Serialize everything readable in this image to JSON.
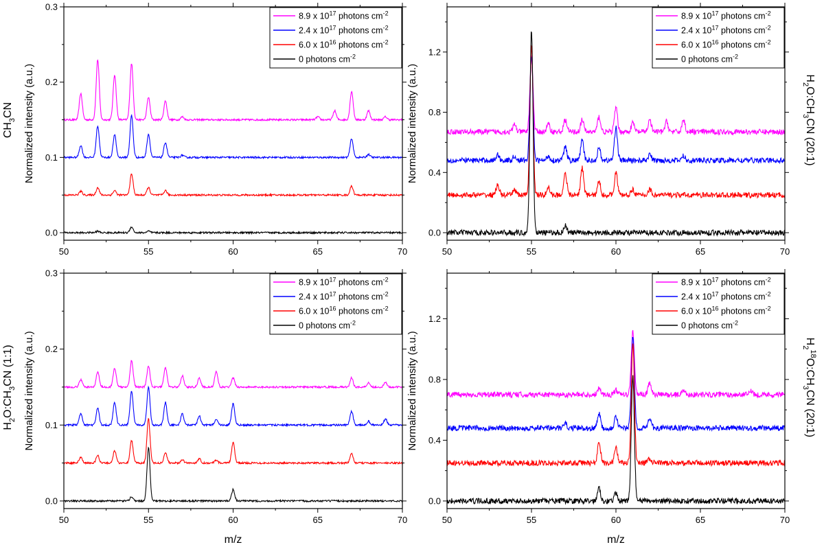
{
  "colors": {
    "magenta": "#ff00ff",
    "blue": "#0000ff",
    "red": "#ff0000",
    "black": "#000000"
  },
  "legend_entries": [
    {
      "color": "magenta",
      "prefix": "8.9 x 10",
      "exp": "17",
      "suffix": " photons cm",
      "unit_exp": "-2"
    },
    {
      "color": "blue",
      "prefix": "2.4 x 10",
      "exp": "17",
      "suffix": " photons cm",
      "unit_exp": "-2"
    },
    {
      "color": "red",
      "prefix": "6.0 x 10",
      "exp": "16",
      "suffix": " photons cm",
      "unit_exp": "-2"
    },
    {
      "color": "black",
      "prefix": "0 photons cm",
      "exp": "-2",
      "suffix": "",
      "unit_exp": ""
    }
  ],
  "shared_xlabel": "m/z",
  "chart_data": [
    {
      "type": "line",
      "panel": "top-left",
      "label_side": "left",
      "sample_label": [
        {
          "t": "CH"
        },
        {
          "t": "3",
          "sub": true
        },
        {
          "t": "CN"
        }
      ],
      "ylabel": "Normalized intensity (a.u.)",
      "xlabel": "",
      "xlim": [
        50,
        70
      ],
      "ylim": [
        -0.01,
        0.3
      ],
      "xticks": [
        50,
        55,
        60,
        65,
        70
      ],
      "yticks": [
        0.0,
        0.1,
        0.2,
        0.3
      ],
      "ytick_labels": [
        "0.0",
        "0.1",
        "0.2",
        "0.3"
      ],
      "noise": 0.0012,
      "series": [
        {
          "name": "8.9 x 10^17 photons cm^-2",
          "color": "magenta",
          "baseline": 0.15,
          "peaks": [
            [
              51,
              0.035
            ],
            [
              52,
              0.08
            ],
            [
              53,
              0.06
            ],
            [
              54,
              0.075
            ],
            [
              55,
              0.03
            ],
            [
              56,
              0.025
            ],
            [
              57,
              0.004
            ],
            [
              65,
              0.004
            ],
            [
              66,
              0.012
            ],
            [
              67,
              0.038
            ],
            [
              68,
              0.012
            ],
            [
              69,
              0.004
            ]
          ]
        },
        {
          "name": "2.4 x 10^17 photons cm^-2",
          "color": "blue",
          "baseline": 0.1,
          "peaks": [
            [
              51,
              0.016
            ],
            [
              52,
              0.042
            ],
            [
              53,
              0.03
            ],
            [
              54,
              0.056
            ],
            [
              55,
              0.031
            ],
            [
              56,
              0.02
            ],
            [
              57,
              0.003
            ],
            [
              67,
              0.025
            ],
            [
              68,
              0.004
            ]
          ]
        },
        {
          "name": "6.0 x 10^16 photons cm^-2",
          "color": "red",
          "baseline": 0.05,
          "peaks": [
            [
              51,
              0.005
            ],
            [
              52,
              0.01
            ],
            [
              53,
              0.006
            ],
            [
              54,
              0.028
            ],
            [
              55,
              0.01
            ],
            [
              56,
              0.006
            ],
            [
              67,
              0.012
            ]
          ]
        },
        {
          "name": "0 photons cm^-2",
          "color": "black",
          "baseline": 0.0,
          "peaks": [
            [
              52,
              0.002
            ],
            [
              54,
              0.008
            ],
            [
              55,
              0.002
            ]
          ]
        }
      ]
    },
    {
      "type": "line",
      "panel": "top-right",
      "label_side": "right",
      "sample_label": [
        {
          "t": "H"
        },
        {
          "t": "2",
          "sub": true
        },
        {
          "t": "O:CH"
        },
        {
          "t": "3",
          "sub": true
        },
        {
          "t": "CN (20:1)"
        }
      ],
      "ylabel": "Normalized intensity (a.u.)",
      "xlabel": "",
      "xlim": [
        50,
        70
      ],
      "ylim": [
        -0.05,
        1.5
      ],
      "xticks": [
        50,
        55,
        60,
        65,
        70
      ],
      "yticks": [
        0.0,
        0.4,
        0.8,
        1.2
      ],
      "ytick_labels": [
        "0.0",
        "0.4",
        "0.8",
        "1.2"
      ],
      "noise": 0.018,
      "series": [
        {
          "name": "8.9 x 10^17 photons cm^-2",
          "color": "magenta",
          "baseline": 0.67,
          "peaks": [
            [
              54,
              0.05
            ],
            [
              55,
              0.5
            ],
            [
              56,
              0.05
            ],
            [
              57,
              0.08
            ],
            [
              58,
              0.08
            ],
            [
              59,
              0.1
            ],
            [
              60,
              0.16
            ],
            [
              61,
              0.06
            ],
            [
              62,
              0.08
            ],
            [
              63,
              0.07
            ],
            [
              64,
              0.08
            ]
          ]
        },
        {
          "name": "2.4 x 10^17 photons cm^-2",
          "color": "blue",
          "baseline": 0.48,
          "peaks": [
            [
              53,
              0.04
            ],
            [
              54,
              0.03
            ],
            [
              55,
              0.7
            ],
            [
              56,
              0.03
            ],
            [
              57,
              0.09
            ],
            [
              58,
              0.13
            ],
            [
              59,
              0.08
            ],
            [
              60,
              0.22
            ],
            [
              62,
              0.04
            ],
            [
              64,
              0.03
            ]
          ]
        },
        {
          "name": "6.0 x 10^16 photons cm^-2",
          "color": "red",
          "baseline": 0.25,
          "peaks": [
            [
              53,
              0.07
            ],
            [
              54,
              0.04
            ],
            [
              55,
              1.0
            ],
            [
              56,
              0.05
            ],
            [
              57,
              0.15
            ],
            [
              58,
              0.18
            ],
            [
              59,
              0.09
            ],
            [
              60,
              0.15
            ],
            [
              61,
              0.04
            ],
            [
              62,
              0.04
            ]
          ]
        },
        {
          "name": "0 photons cm^-2",
          "color": "black",
          "baseline": 0.0,
          "peaks": [
            [
              55,
              1.35
            ],
            [
              57,
              0.05
            ]
          ]
        }
      ]
    },
    {
      "type": "line",
      "panel": "bottom-left",
      "label_side": "left",
      "sample_label": [
        {
          "t": "H"
        },
        {
          "t": "2",
          "sub": true
        },
        {
          "t": "O:CH"
        },
        {
          "t": "3",
          "sub": true
        },
        {
          "t": "CN (1:1)"
        }
      ],
      "ylabel": "Normalized intensity (a.u.)",
      "xlabel": "m/z",
      "xlim": [
        50,
        70
      ],
      "ylim": [
        -0.01,
        0.3
      ],
      "xticks": [
        50,
        55,
        60,
        65,
        70
      ],
      "yticks": [
        0.0,
        0.1,
        0.2,
        0.3
      ],
      "ytick_labels": [
        "0.0",
        "0.1",
        "0.2",
        "0.3"
      ],
      "noise": 0.0012,
      "series": [
        {
          "name": "8.9 x 10^17 photons cm^-2",
          "color": "magenta",
          "baseline": 0.15,
          "peaks": [
            [
              51,
              0.01
            ],
            [
              52,
              0.02
            ],
            [
              53,
              0.025
            ],
            [
              54,
              0.035
            ],
            [
              55,
              0.028
            ],
            [
              56,
              0.026
            ],
            [
              57,
              0.015
            ],
            [
              58,
              0.012
            ],
            [
              59,
              0.02
            ],
            [
              60,
              0.012
            ],
            [
              67,
              0.012
            ],
            [
              68,
              0.006
            ],
            [
              69,
              0.006
            ]
          ]
        },
        {
          "name": "2.4 x 10^17 photons cm^-2",
          "color": "blue",
          "baseline": 0.1,
          "peaks": [
            [
              51,
              0.015
            ],
            [
              52,
              0.022
            ],
            [
              53,
              0.03
            ],
            [
              54,
              0.045
            ],
            [
              55,
              0.05
            ],
            [
              56,
              0.03
            ],
            [
              57,
              0.015
            ],
            [
              58,
              0.012
            ],
            [
              59,
              0.008
            ],
            [
              60,
              0.028
            ],
            [
              67,
              0.018
            ],
            [
              68,
              0.005
            ],
            [
              69,
              0.008
            ]
          ]
        },
        {
          "name": "6.0 x 10^16 photons cm^-2",
          "color": "red",
          "baseline": 0.05,
          "peaks": [
            [
              51,
              0.008
            ],
            [
              52,
              0.01
            ],
            [
              53,
              0.016
            ],
            [
              54,
              0.03
            ],
            [
              55,
              0.058
            ],
            [
              56,
              0.014
            ],
            [
              57,
              0.004
            ],
            [
              58,
              0.006
            ],
            [
              59,
              0.004
            ],
            [
              60,
              0.027
            ],
            [
              67,
              0.012
            ]
          ]
        },
        {
          "name": "0 photons cm^-2",
          "color": "black",
          "baseline": 0.0,
          "peaks": [
            [
              54,
              0.006
            ],
            [
              55,
              0.07
            ],
            [
              60,
              0.015
            ]
          ]
        }
      ]
    },
    {
      "type": "line",
      "panel": "bottom-right",
      "label_side": "right",
      "sample_label": [
        {
          "t": "H"
        },
        {
          "t": "2",
          "sub": true
        },
        {
          "t": "18",
          "sup": true
        },
        {
          "t": "O:CH"
        },
        {
          "t": "3",
          "sub": true
        },
        {
          "t": "CN (20:1)"
        }
      ],
      "ylabel": "Normalized intensity (a.u.)",
      "xlabel": "m/z",
      "xlim": [
        50,
        70
      ],
      "ylim": [
        -0.05,
        1.5
      ],
      "xticks": [
        50,
        55,
        60,
        65,
        70
      ],
      "yticks": [
        0.0,
        0.4,
        0.8,
        1.2
      ],
      "ytick_labels": [
        "0.0",
        "0.4",
        "0.8",
        "1.2"
      ],
      "noise": 0.018,
      "series": [
        {
          "name": "8.9 x 10^17 photons cm^-2",
          "color": "magenta",
          "baseline": 0.7,
          "peaks": [
            [
              59,
              0.05
            ],
            [
              60,
              0.03
            ],
            [
              61,
              0.42
            ],
            [
              62,
              0.08
            ],
            [
              64,
              0.03
            ],
            [
              68,
              0.03
            ]
          ]
        },
        {
          "name": "2.4 x 10^17 photons cm^-2",
          "color": "blue",
          "baseline": 0.48,
          "peaks": [
            [
              57,
              0.03
            ],
            [
              59,
              0.1
            ],
            [
              60,
              0.08
            ],
            [
              61,
              0.6
            ],
            [
              62,
              0.07
            ]
          ]
        },
        {
          "name": "6.0 x 10^16 photons cm^-2",
          "color": "red",
          "baseline": 0.25,
          "peaks": [
            [
              59,
              0.14
            ],
            [
              60,
              0.1
            ],
            [
              61,
              0.78
            ],
            [
              62,
              0.03
            ]
          ]
        },
        {
          "name": "0 photons cm^-2",
          "color": "black",
          "baseline": 0.0,
          "peaks": [
            [
              59,
              0.09
            ],
            [
              60,
              0.05
            ],
            [
              61,
              0.82
            ]
          ]
        }
      ]
    }
  ]
}
